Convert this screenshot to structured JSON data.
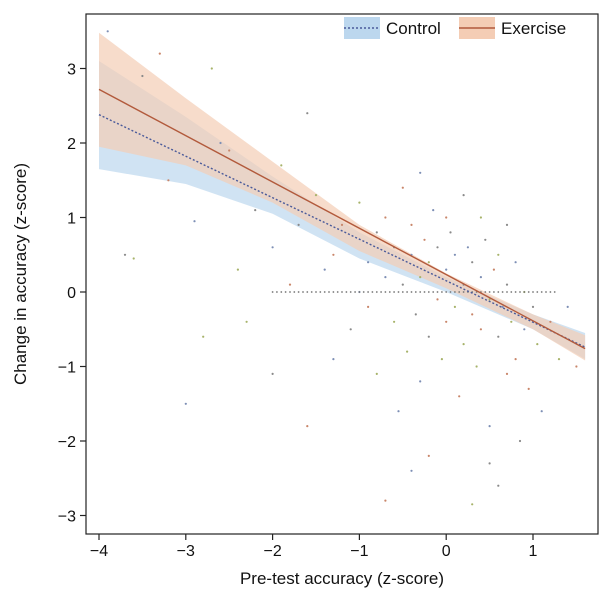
{
  "chart_data": {
    "type": "scatter",
    "title": "",
    "xlabel": "Pre-test accuracy  (z-score)",
    "ylabel": "Change  in accuracy  (z-score)",
    "xlim": [
      -4.1,
      1.7
    ],
    "ylim": [
      -3.15,
      3.7
    ],
    "xticks": [
      -4,
      -3,
      -2,
      -1,
      0,
      1
    ],
    "yticks": [
      -3,
      -2,
      -1,
      0,
      1,
      2,
      3
    ],
    "xtick_labels": [
      "−4",
      "−3",
      "−2",
      "−1",
      "0",
      "1"
    ],
    "ytick_labels": [
      "−3",
      "−2",
      "−1",
      "0",
      "1",
      "2",
      "3"
    ],
    "legend": {
      "position": "top-right"
    },
    "series": [
      {
        "name": "Control",
        "line_style": "dotted",
        "line_color": "#4a5a9a",
        "band_color": "#bcd7ee",
        "fit": {
          "x": [
            -4.0,
            1.6
          ],
          "y": [
            2.38,
            -0.74
          ]
        },
        "band": [
          {
            "x": -4.0,
            "lo": 1.65,
            "hi": 3.1
          },
          {
            "x": -3.0,
            "lo": 1.45,
            "hi": 2.35
          },
          {
            "x": -2.0,
            "lo": 1.05,
            "hi": 1.55
          },
          {
            "x": -1.0,
            "lo": 0.45,
            "hi": 0.8
          },
          {
            "x": 0.0,
            "lo": 0.0,
            "hi": 0.2
          },
          {
            "x": 1.0,
            "lo": -0.5,
            "hi": -0.3
          },
          {
            "x": 1.6,
            "lo": -0.9,
            "hi": -0.55
          }
        ]
      },
      {
        "name": "Exercise",
        "line_style": "solid",
        "line_color": "#b25a3c",
        "band_color": "#f4cdb5",
        "fit": {
          "x": [
            -4.0,
            1.6
          ],
          "y": [
            2.72,
            -0.76
          ]
        },
        "band": [
          {
            "x": -4.0,
            "lo": 1.95,
            "hi": 3.48
          },
          {
            "x": -3.0,
            "lo": 1.7,
            "hi": 2.6
          },
          {
            "x": -2.0,
            "lo": 1.2,
            "hi": 1.75
          },
          {
            "x": -1.0,
            "lo": 0.55,
            "hi": 0.9
          },
          {
            "x": 0.0,
            "lo": 0.05,
            "hi": 0.25
          },
          {
            "x": 1.0,
            "lo": -0.5,
            "hi": -0.3
          },
          {
            "x": 1.6,
            "lo": -0.92,
            "hi": -0.58
          }
        ]
      }
    ],
    "points_note": "",
    "scatter_points": [
      [
        -3.9,
        3.5
      ],
      [
        -3.3,
        3.2
      ],
      [
        -3.5,
        2.9
      ],
      [
        -2.7,
        3.0
      ],
      [
        -2.6,
        2.0
      ],
      [
        -3.2,
        1.5
      ],
      [
        -3.7,
        0.5
      ],
      [
        -3.6,
        0.45
      ],
      [
        -2.9,
        0.95
      ],
      [
        -2.5,
        1.9
      ],
      [
        -2.2,
        1.1
      ],
      [
        -1.9,
        1.7
      ],
      [
        -2.0,
        0.6
      ],
      [
        -1.8,
        0.1
      ],
      [
        -1.6,
        2.4
      ],
      [
        -1.5,
        1.3
      ],
      [
        -1.4,
        0.3
      ],
      [
        -1.2,
        0.9
      ],
      [
        -1.1,
        -0.5
      ],
      [
        -1.0,
        1.2
      ],
      [
        -0.9,
        0.4
      ],
      [
        -0.9,
        -0.2
      ],
      [
        -0.8,
        0.8
      ],
      [
        -0.8,
        -1.1
      ],
      [
        -0.7,
        0.2
      ],
      [
        -0.7,
        1.0
      ],
      [
        -0.6,
        0.6
      ],
      [
        -0.6,
        -0.4
      ],
      [
        -0.55,
        -1.6
      ],
      [
        -0.5,
        1.4
      ],
      [
        -0.5,
        0.1
      ],
      [
        -0.45,
        -0.8
      ],
      [
        -0.4,
        0.5
      ],
      [
        -0.4,
        0.9
      ],
      [
        -0.35,
        -0.3
      ],
      [
        -0.3,
        0.2
      ],
      [
        -0.3,
        -1.2
      ],
      [
        -0.25,
        0.7
      ],
      [
        -0.2,
        -0.6
      ],
      [
        -0.2,
        0.4
      ],
      [
        -0.15,
        1.1
      ],
      [
        -0.1,
        -0.1
      ],
      [
        -0.1,
        0.6
      ],
      [
        -0.05,
        -0.9
      ],
      [
        0.0,
        0.3
      ],
      [
        0.0,
        -0.4
      ],
      [
        0.05,
        0.8
      ],
      [
        0.1,
        -0.2
      ],
      [
        0.1,
        0.5
      ],
      [
        0.15,
        -1.4
      ],
      [
        0.2,
        0.1
      ],
      [
        0.2,
        -0.7
      ],
      [
        0.25,
        0.6
      ],
      [
        0.3,
        -0.3
      ],
      [
        0.3,
        0.4
      ],
      [
        0.35,
        -1.0
      ],
      [
        0.4,
        0.2
      ],
      [
        0.4,
        -0.5
      ],
      [
        0.45,
        0.7
      ],
      [
        0.5,
        -0.1
      ],
      [
        0.5,
        -1.8
      ],
      [
        0.55,
        0.3
      ],
      [
        0.6,
        -0.6
      ],
      [
        0.6,
        0.5
      ],
      [
        0.65,
        -0.2
      ],
      [
        0.7,
        -1.1
      ],
      [
        0.7,
        0.1
      ],
      [
        0.75,
        -0.4
      ],
      [
        0.8,
        0.4
      ],
      [
        0.8,
        -0.9
      ],
      [
        0.85,
        -2.0
      ],
      [
        0.9,
        0.0
      ],
      [
        0.9,
        -0.5
      ],
      [
        0.95,
        -1.3
      ],
      [
        1.0,
        -0.2
      ],
      [
        1.05,
        -0.7
      ],
      [
        1.1,
        -1.6
      ],
      [
        1.2,
        -0.4
      ],
      [
        0.6,
        -2.6
      ],
      [
        0.3,
        -2.85
      ],
      [
        -0.4,
        -2.4
      ],
      [
        -1.6,
        -1.8
      ],
      [
        -2.0,
        -1.1
      ],
      [
        -2.3,
        -0.4
      ],
      [
        -1.3,
        -0.9
      ],
      [
        -0.2,
        -2.2
      ],
      [
        0.5,
        -2.3
      ],
      [
        -2.8,
        -0.6
      ],
      [
        -3.0,
        -1.5
      ],
      [
        -0.7,
        -2.8
      ],
      [
        -1.7,
        0.9
      ],
      [
        -2.4,
        0.3
      ],
      [
        -1.0,
        0.0
      ],
      [
        -1.3,
        0.5
      ],
      [
        0.2,
        1.3
      ],
      [
        0.4,
        1.0
      ],
      [
        -0.3,
        1.6
      ],
      [
        0.0,
        1.0
      ],
      [
        0.7,
        0.9
      ],
      [
        1.3,
        -0.9
      ],
      [
        1.4,
        -0.2
      ],
      [
        1.5,
        -1.0
      ]
    ]
  },
  "legend_items": [
    {
      "label": "Control"
    },
    {
      "label": "Exercise"
    }
  ]
}
